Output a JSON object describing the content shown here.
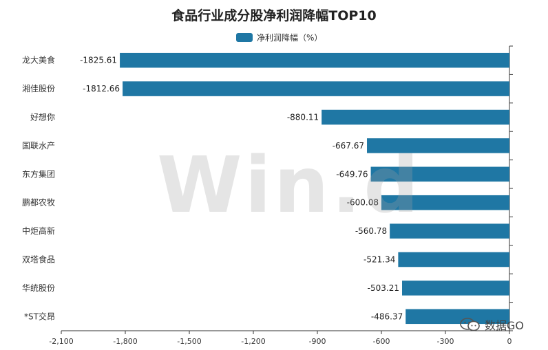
{
  "chart_data": {
    "type": "bar",
    "orientation": "horizontal",
    "title": "食品行业成分股净利润降幅TOP10",
    "legend_position": "top-center",
    "series": [
      {
        "name": "净利润降幅（%）",
        "color": "#1f77a4",
        "values": [
          -1825.61,
          -1812.66,
          -880.11,
          -667.67,
          -649.76,
          -600.08,
          -560.78,
          -521.34,
          -503.21,
          -486.37
        ]
      }
    ],
    "categories": [
      "龙大美食",
      "湘佳股份",
      "好想你",
      "国联水产",
      "东方集团",
      "鹏都农牧",
      "中炬高新",
      "双塔食品",
      "华统股份",
      "*ST交昂"
    ],
    "value_labels": [
      "-1825.61",
      "-1812.66",
      "-880.11",
      "-667.67",
      "-649.76",
      "-600.08",
      "-560.78",
      "-521.34",
      "-503.21",
      "-486.37"
    ],
    "xlim": [
      -2100,
      0
    ],
    "xticks": [
      -2100,
      -1800,
      -1500,
      -1200,
      -900,
      -600,
      -300,
      0
    ],
    "xtick_labels": [
      "-2,100",
      "-1,800",
      "-1,500",
      "-1,200",
      "-900",
      "-600",
      "-300",
      "0"
    ],
    "grid": false
  },
  "watermark": "Win.d",
  "badge": {
    "icon": "wechat-icon",
    "text": "数据GO"
  }
}
